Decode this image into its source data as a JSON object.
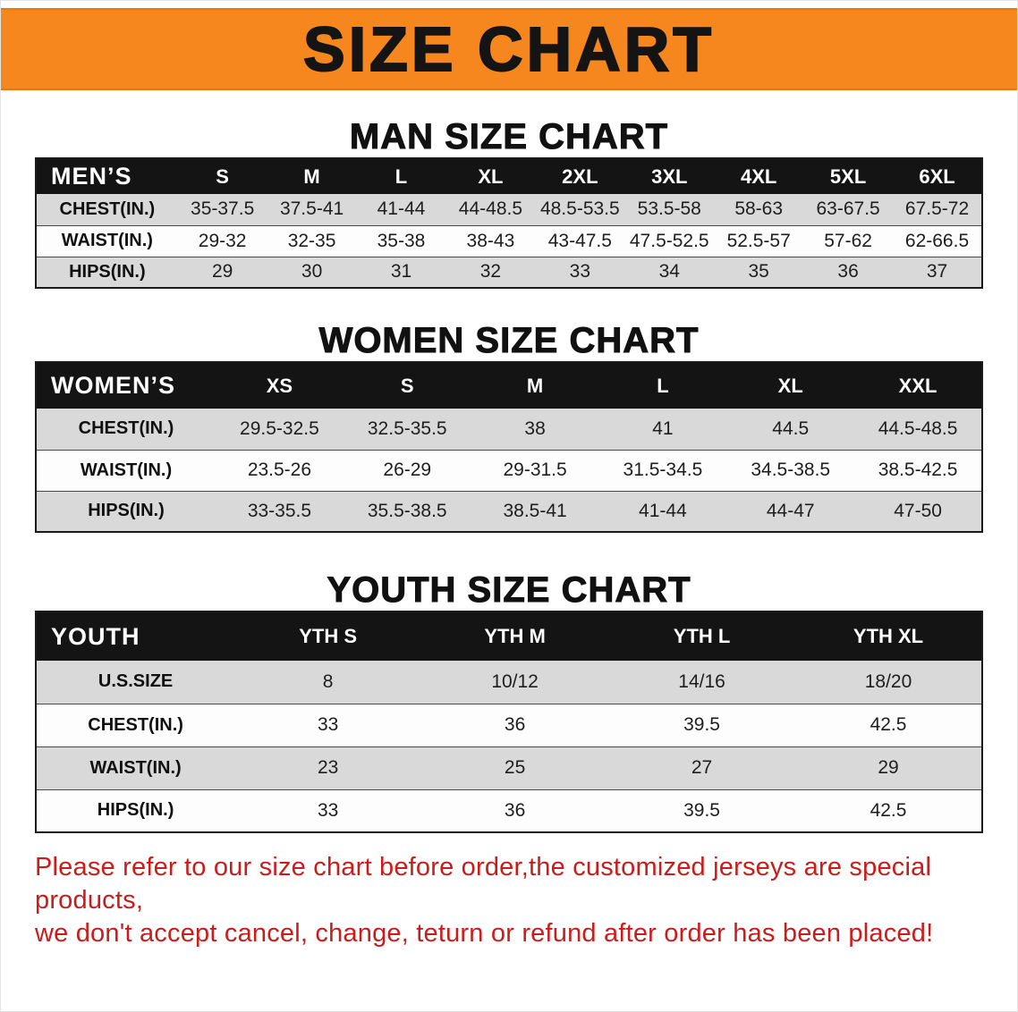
{
  "banner": {
    "title": "SIZE CHART",
    "bg_color": "#F6871F"
  },
  "colors": {
    "banner_orange": "#F6871F",
    "table_header_black": "#141414",
    "row_gray": "#D9D9D9",
    "row_white": "#FDFDFD",
    "disclaimer_red": "#CC1B1B"
  },
  "sections": [
    {
      "title": "MAN SIZE CHART",
      "table": {
        "header": [
          "MEN’S",
          "S",
          "M",
          "L",
          "XL",
          "2XL",
          "3XL",
          "4XL",
          "5XL",
          "6XL"
        ],
        "rows": [
          [
            "CHEST(IN.)",
            "35-37.5",
            "37.5-41",
            "41-44",
            "44-48.5",
            "48.5-53.5",
            "53.5-58",
            "58-63",
            "63-67.5",
            "67.5-72"
          ],
          [
            "WAIST(IN.)",
            "29-32",
            "32-35",
            "35-38",
            "38-43",
            "43-47.5",
            "47.5-52.5",
            "52.5-57",
            "57-62",
            "62-66.5"
          ],
          [
            "HIPS(IN.)",
            "29",
            "30",
            "31",
            "32",
            "33",
            "34",
            "35",
            "36",
            "37"
          ]
        ]
      }
    },
    {
      "title": "WOMEN SIZE CHART",
      "table": {
        "header": [
          "WOMEN’S",
          "XS",
          "S",
          "M",
          "L",
          "XL",
          "XXL"
        ],
        "rows": [
          [
            "CHEST(IN.)",
            "29.5-32.5",
            "32.5-35.5",
            "38",
            "41",
            "44.5",
            "44.5-48.5"
          ],
          [
            "WAIST(IN.)",
            "23.5-26",
            "26-29",
            "29-31.5",
            "31.5-34.5",
            "34.5-38.5",
            "38.5-42.5"
          ],
          [
            "HIPS(IN.)",
            "33-35.5",
            "35.5-38.5",
            "38.5-41",
            "41-44",
            "44-47",
            "47-50"
          ]
        ]
      }
    },
    {
      "title": "YOUTH SIZE CHART",
      "table": {
        "header": [
          "YOUTH",
          "YTH S",
          "YTH M",
          "YTH L",
          "YTH XL"
        ],
        "rows": [
          [
            "U.S.SIZE",
            "8",
            "10/12",
            "14/16",
            "18/20"
          ],
          [
            "CHEST(IN.)",
            "33",
            "36",
            "39.5",
            "42.5"
          ],
          [
            "WAIST(IN.)",
            "23",
            "25",
            "27",
            "29"
          ],
          [
            "HIPS(IN.)",
            "33",
            "36",
            "39.5",
            "42.5"
          ]
        ]
      }
    }
  ],
  "footer": {
    "line1": "Please refer to our size chart before order,the customized jerseys are special products,",
    "line2": "we don't accept cancel, change, teturn or refund after order has been placed!"
  }
}
